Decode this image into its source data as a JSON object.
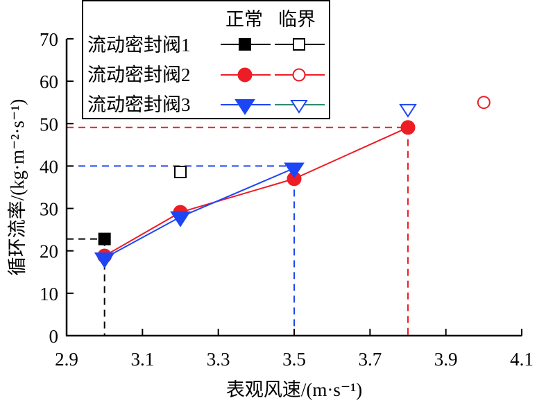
{
  "chart_data": {
    "type": "line",
    "title": "",
    "xlabel": "表观风速/(m·s⁻¹)",
    "ylabel": "循环流率/(kg·m⁻²·s⁻¹)",
    "xlim": [
      2.9,
      4.1
    ],
    "ylim": [
      0,
      70
    ],
    "x_ticks": [
      "2.9",
      "3.1",
      "3.3",
      "3.5",
      "3.7",
      "3.9",
      "4.1"
    ],
    "y_ticks": [
      "0",
      "10",
      "20",
      "30",
      "40",
      "50",
      "60",
      "70"
    ],
    "grid": false,
    "legend": {
      "placement": "top-left",
      "headers": [
        "正常",
        "临界"
      ],
      "entries": [
        "流动密封阀1",
        "流动密封阀2",
        "流动密封阀3"
      ]
    },
    "series": [
      {
        "name": "流动密封阀1",
        "color": "#000000",
        "critical_line_color": "#000000",
        "marker": "square",
        "normal": {
          "x": [
            3.0
          ],
          "y": [
            22.8
          ]
        },
        "critical": {
          "x": [
            3.2
          ],
          "y": [
            38.6
          ]
        },
        "guide": {
          "x": 3.0,
          "y": 22.8
        }
      },
      {
        "name": "流动密封阀2",
        "color": "#ee1c25",
        "critical_line_color": "#ee1c25",
        "marker": "circle",
        "normal": {
          "x": [
            3.0,
            3.2,
            3.5,
            3.8
          ],
          "y": [
            18.8,
            29.1,
            37.0,
            49.1
          ]
        },
        "critical": {
          "x": [
            4.0
          ],
          "y": [
            55.0
          ]
        },
        "guide": {
          "x": 3.8,
          "y": 49.1
        }
      },
      {
        "name": "流动密封阀3",
        "color": "#1c46f5",
        "critical_line_color": "#2e8b6b",
        "marker": "triangle-down",
        "normal": {
          "x": [
            3.0,
            3.2,
            3.5
          ],
          "y": [
            18.3,
            28.0,
            39.5
          ]
        },
        "critical": {
          "x": [
            3.8
          ],
          "y": [
            53.5
          ]
        },
        "guide": {
          "x": 3.5,
          "y": 40.0
        }
      }
    ]
  }
}
